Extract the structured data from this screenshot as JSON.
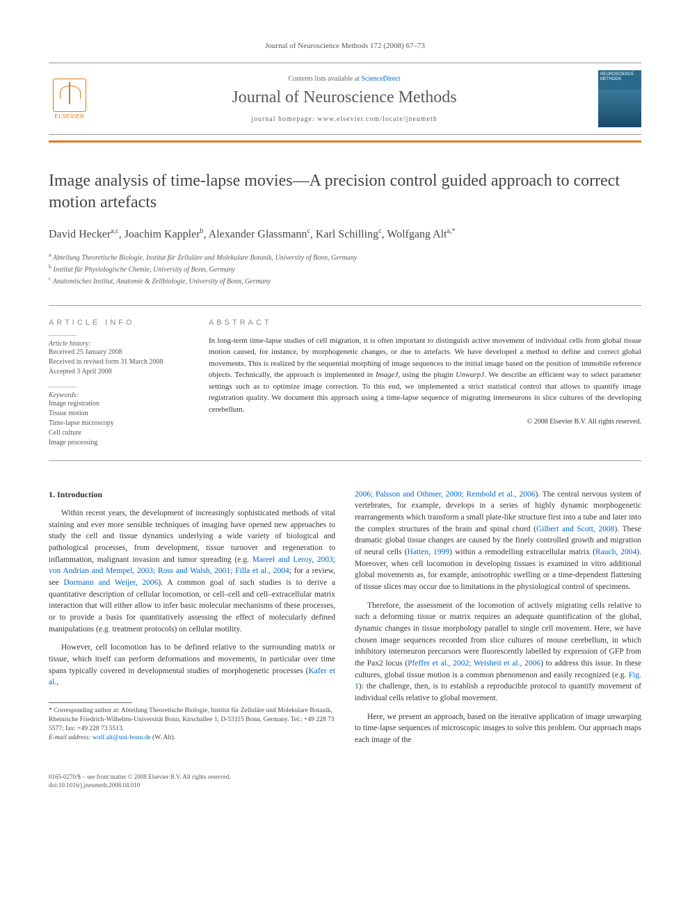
{
  "top_journal_line": "Journal of Neuroscience Methods 172 (2008) 67–73",
  "header": {
    "elsevier_label": "ELSEVIER",
    "contents_prefix": "Contents lists available at ",
    "contents_link": "ScienceDirect",
    "journal_name": "Journal of Neuroscience Methods",
    "homepage_prefix": "journal homepage: ",
    "homepage_url": "www.elsevier.com/locate/jneumeth",
    "cover_title": "NEUROSCIENCE METHODS"
  },
  "title": "Image analysis of time-lapse movies—A precision control guided approach to correct motion artefacts",
  "authors_html": "David Hecker<sup>a,c</sup>, Joachim Kappler<sup>b</sup>, Alexander Glassmann<sup>c</sup>, Karl Schilling<sup>c</sup>, Wolfgang Alt<sup>a,*</sup>",
  "affiliations": {
    "a": "Abteilung Theoretische Biologie, Institut für Zelluläre und Molekulare Botanik, University of Bonn, Germany",
    "b": "Institut für Physiologische Chemie, University of Bonn, Germany",
    "c": "Anatomisches Institut, Anatomie & Zellbiologie, University of Bonn, Germany"
  },
  "info": {
    "head": "ARTICLE INFO",
    "history_label": "Article history:",
    "history": [
      "Received 25 January 2008",
      "Received in revised form 31 March 2008",
      "Accepted 3 April 2008"
    ],
    "keywords_label": "Keywords:",
    "keywords": [
      "Image registration",
      "Tissue motion",
      "Time-lapse microscopy",
      "Cell culture",
      "Image processing"
    ]
  },
  "abstract": {
    "head": "ABSTRACT",
    "text": "In long-term time-lapse studies of cell migration, it is often important to distinguish active movement of individual cells from global tissue motion caused, for instance, by morphogenetic changes, or due to artefacts. We have developed a method to define and correct global movements. This is realized by the sequential morphing of image sequences to the initial image based on the position of immobile reference objects. Technically, the approach is implemented in ImageJ, using the plugin UnwarpJ. We describe an efficient way to select parameter settings such as to optimize image correction. To this end, we implemented a strict statistical control that allows to quantify image registration quality. We document this approach using a time-lapse sequence of migrating interneurons in slice cultures of the developing cerebellum.",
    "copyright": "© 2008 Elsevier B.V. All rights reserved."
  },
  "body": {
    "heading": "1. Introduction",
    "p1_a": "Within recent years, the development of increasingly sophisticated methods of vital staining and ever more sensible techniques of imaging have opened new approaches to study the cell and tissue dynamics underlying a wide variety of biological and pathological processes, from development, tissue turnover and regeneration to inflammation, malignant invasion and tumor spreading (e.g. ",
    "p1_cite1": "Mareel and Leroy, 2003; von Andrian and Mempel, 2003; Ross and Walsh, 2001; Filla et al., 2004",
    "p1_b": "; for a review, see ",
    "p1_cite2": "Dormann and Weijer, 2006",
    "p1_c": "). A common goal of such studies is to derive a quantitative description of cellular locomotion, or cell–cell and cell–extracellular matrix interaction that will either allow to infer basic molecular mechanisms of these processes, or to provide a basis for quantitatively assessing the effect of molecularly defined manipulations (e.g. treatment protocols) on cellular motility.",
    "p2_a": "However, cell locomotion has to be defined relative to the surrounding matrix or tissue, which itself can perform deformations and movements, in particular over time spans typically covered in developmental studies of morphogenetic processes (",
    "p2_cite1": "Kafer et al., ",
    "p2_cite1b": "2006; Palsson and Othmer, 2000; Rembold et al., 2006",
    "p2_b": "). The central nervous system of vertebrates, for example, develops in a series of highly dynamic morphogenetic rearrangements which transform a small plate-like structure first into a tube and later into the complex structures of the brain and spinal chord (",
    "p2_cite2": "Gilbert and Scott, 2008",
    "p2_c": "). These dramatic global tissue changes are caused by the finely controlled growth and migration of neural cells (",
    "p2_cite3": "Hatten, 1999",
    "p2_d": ") within a remodelling extracellular matrix (",
    "p2_cite4": "Rauch, 2004",
    "p2_e": "). Moreover, when cell locomotion in developing tissues is examined in vitro additional global movements as, for example, anisotrophic swelling or a time-dependent flattening of tissue slices may occur due to limitations in the physiological control of specimens.",
    "p3_a": "Therefore, the assessment of the locomotion of actively migrating cells relative to such a deforming tissue or matrix requires an adequate quantification of the global, dynamic changes in tissue morphology parallel to single cell movement. Here, we have chosen image sequences recorded from slice cultures of mouse cerebellum, in which inhibitory interneuron precursors were fluorescently labelled by expression of GFP from the Pax2 locus (",
    "p3_cite1": "Pfeffer et al., 2002; Weisheit et al., 2006",
    "p3_b": ") to address this issue. In these cultures, global tissue motion is a common phenomenon and easily recognized (e.g. ",
    "p3_cite2": "Fig. 1",
    "p3_c": "): the challenge, then, is to establish a reproducible protocol to quantify movement of individual cells relative to global movement.",
    "p4": "Here, we present an approach, based on the iterative application of image unwarping to time-lapse sequences of microscopic images to solve this problem. Our approach maps each image of the"
  },
  "footnote": {
    "corr_label": "* Corresponding author at: ",
    "corr_text": "Abteilung Theoretische Biologie, Institut für Zelluläre und Molekulare Botanik, Rheinische Friedrich-Wilhelms-Universität Bonn, Kirschallee 1, D-53115 Bonn, Germany. Tel.: +49 228 73 5577; fax: +49 228 73 5513.",
    "email_label": "E-mail address: ",
    "email": "wolf.alt@uni-bonn.de",
    "email_who": " (W. Alt)."
  },
  "bottom": {
    "issn_line": "0165-0270/$ – see front matter © 2008 Elsevier B.V. All rights reserved.",
    "doi_line": "doi:10.1016/j.jneumeth.2008.04.010"
  },
  "colors": {
    "orange": "#e67817",
    "link": "#0066cc",
    "text": "#333333",
    "muted": "#666666"
  }
}
